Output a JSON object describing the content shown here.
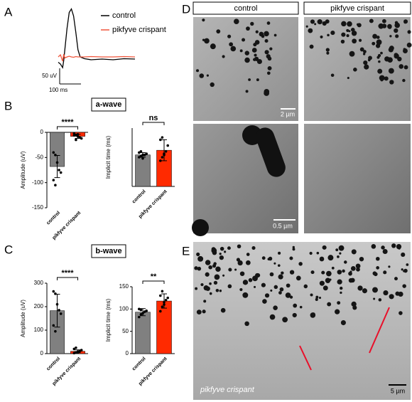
{
  "panel_letters": [
    "A",
    "B",
    "C",
    "D",
    "E"
  ],
  "chart_data": [
    {
      "type": "line",
      "x": [
        0,
        10,
        20,
        25,
        30,
        40,
        50,
        60,
        70,
        80,
        90,
        100,
        120,
        150,
        200,
        250,
        300,
        350
      ],
      "series": [
        {
          "name": "control",
          "color": "#000000",
          "values": [
            -15,
            -20,
            -30,
            -10,
            20,
            80,
            125,
            135,
            115,
            70,
            20,
            0,
            -5,
            -8,
            -6,
            -8,
            -5,
            -6
          ]
        },
        {
          "name": "pikfyve crispant",
          "color": "#f0563c",
          "values": [
            0,
            6,
            -12,
            8,
            -3,
            0,
            2,
            0,
            -1,
            1,
            0,
            0,
            0,
            1,
            0,
            0,
            1,
            0
          ]
        }
      ],
      "xlim": [
        0,
        350
      ],
      "ylim": [
        -40,
        140
      ],
      "scale_bar": {
        "y": "50 uV",
        "x": "100 ms"
      }
    },
    {
      "type": "bar",
      "title": "a-wave",
      "y_label": "Amplitude (uV)",
      "categories": [
        "control",
        "pikfyve crispant"
      ],
      "colors": [
        "#808080",
        "#ff2a00"
      ],
      "values": [
        -68,
        -8
      ],
      "errors": [
        22,
        4
      ],
      "points": [
        [
          -40,
          -45,
          -60,
          -75,
          -80,
          -95,
          -105
        ],
        [
          -2,
          -5,
          -8,
          -10,
          -12,
          -6,
          -15,
          -4
        ]
      ],
      "ylim": [
        -150,
        0
      ],
      "yticks": [
        -150,
        -100,
        -50,
        0
      ],
      "significance": "****"
    },
    {
      "type": "bar",
      "y_label": "Implicit time (ms)",
      "categories": [
        "control",
        "pikfyve crispant"
      ],
      "colors": [
        "#808080",
        "#ff2a00"
      ],
      "values": [
        27,
        31
      ],
      "errors": [
        2,
        9
      ],
      "points": [
        [
          25,
          26,
          27,
          27,
          28,
          29,
          30,
          24
        ],
        [
          22,
          25,
          28,
          30,
          35,
          40,
          42,
          27
        ]
      ],
      "ylim": [
        0,
        50
      ],
      "significance": "ns"
    },
    {
      "type": "bar",
      "title": "b-wave",
      "y_label": "Amplitude (uV)",
      "categories": [
        "control",
        "pikfyve crispant"
      ],
      "colors": [
        "#808080",
        "#ff2a00"
      ],
      "values": [
        183,
        10
      ],
      "errors": [
        70,
        6
      ],
      "points": [
        [
          265,
          255,
          210,
          185,
          170,
          120,
          95
        ],
        [
          2,
          5,
          8,
          10,
          15,
          20,
          25,
          5
        ]
      ],
      "ylim": [
        0,
        300
      ],
      "yticks": [
        0,
        100,
        200,
        300
      ],
      "significance": "****"
    },
    {
      "type": "bar",
      "y_label": "Implicit time (ms)",
      "categories": [
        "control",
        "pikfyve crispant"
      ],
      "colors": [
        "#808080",
        "#ff2a00"
      ],
      "values": [
        93,
        118
      ],
      "errors": [
        8,
        16
      ],
      "points": [
        [
          82,
          88,
          90,
          94,
          96,
          100,
          98
        ],
        [
          95,
          105,
          115,
          120,
          125,
          130,
          140,
          110
        ]
      ],
      "ylim": [
        0,
        150
      ],
      "yticks": [
        0,
        50,
        100,
        150
      ],
      "significance": "**"
    }
  ],
  "micrographs": {
    "columns": [
      "control",
      "pikfyve crispant"
    ],
    "scale_bars": [
      "2 µm",
      "0.5 µm",
      "5 µm"
    ],
    "panel_e_label": "pikfyve crispant"
  }
}
